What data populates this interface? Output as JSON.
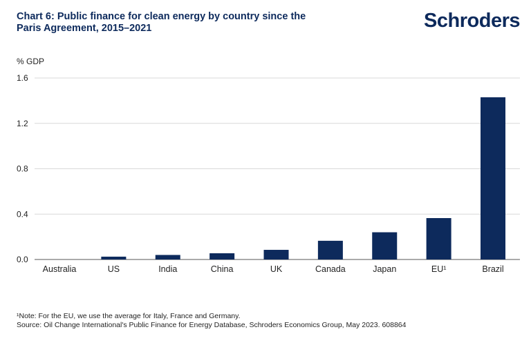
{
  "header": {
    "title": "Chart 6: Public finance for clean energy by country since the Paris Agreement, 2015–2021",
    "logo_text": "Schroders"
  },
  "footer": {
    "note": "¹Note: For the EU, we use the average for Italy, France and Germany.",
    "source": "Source: Oil Change International's Public Finance for Energy Database, Schroders Economics Group, May 2023. 608864"
  },
  "chart_data": {
    "type": "bar",
    "title": "Chart 6: Public finance for clean energy by country since the Paris Agreement, 2015–2021",
    "ylabel": "% GDP",
    "xlabel": "",
    "categories": [
      "Australia",
      "US",
      "India",
      "China",
      "UK",
      "Canada",
      "Japan",
      "EU¹",
      "Brazil"
    ],
    "values": [
      0.0,
      0.025,
      0.04,
      0.055,
      0.085,
      0.165,
      0.24,
      0.365,
      1.43
    ],
    "ylim": [
      0,
      1.6
    ],
    "yticks": [
      0.0,
      0.4,
      0.8,
      1.2,
      1.6
    ],
    "ytick_labels": [
      "0.0",
      "0.4",
      "0.8",
      "1.2",
      "1.6"
    ],
    "grid": true,
    "bar_color": "#0d2a5c",
    "grid_color": "#d9d9d9"
  }
}
